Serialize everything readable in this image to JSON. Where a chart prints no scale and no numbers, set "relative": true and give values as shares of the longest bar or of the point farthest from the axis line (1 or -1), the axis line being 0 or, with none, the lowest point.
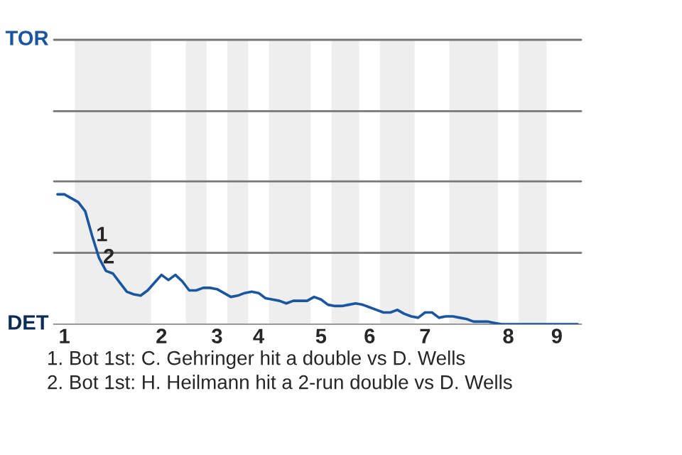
{
  "chart_data": {
    "type": "line",
    "relative": true,
    "categories": [
      null,
      "1",
      null,
      null,
      null,
      null,
      null,
      null,
      null,
      null,
      null,
      null,
      null,
      null,
      null,
      "2",
      null,
      null,
      null,
      null,
      null,
      null,
      null,
      "3",
      null,
      null,
      null,
      null,
      null,
      "4",
      null,
      null,
      null,
      null,
      null,
      null,
      null,
      null,
      "5",
      null,
      null,
      null,
      null,
      null,
      null,
      "6",
      null,
      null,
      null,
      null,
      null,
      null,
      null,
      "7",
      null,
      null,
      null,
      null,
      null,
      null,
      null,
      null,
      null,
      null,
      null,
      "8",
      null,
      null,
      null,
      null,
      null,
      null,
      "9",
      null,
      null,
      null
    ],
    "series": [
      {
        "color": "#1a56a0",
        "values": [
          1,
          1,
          0.97,
          0.94,
          0.87,
          0.68,
          0.51,
          0.41,
          0.39,
          0.32,
          0.25,
          0.23,
          0.22,
          0.26,
          0.32,
          0.38,
          0.34,
          0.38,
          0.33,
          0.26,
          0.26,
          0.28,
          0.28,
          0.27,
          0.24,
          0.21,
          0.22,
          0.24,
          0.25,
          0.24,
          0.2,
          0.19,
          0.18,
          0.16,
          0.18,
          0.18,
          0.18,
          0.21,
          0.19,
          0.15,
          0.14,
          0.14,
          0.15,
          0.16,
          0.15,
          0.13,
          0.11,
          0.09,
          0.09,
          0.11,
          0.08,
          0.06,
          0.05,
          0.09,
          0.09,
          0.05,
          0.06,
          0.06,
          0.05,
          0.04,
          0.02,
          0.02,
          0.02,
          0.01,
          0,
          0,
          0,
          0,
          0,
          0,
          0,
          0,
          0,
          0,
          0,
          0
        ]
      }
    ],
    "ref_lines": [
      {
        "axis": "y",
        "value": 0.55,
        "color": "#777777"
      },
      {
        "axis": "y",
        "value": 1.1,
        "color": "#777777"
      },
      {
        "axis": "y",
        "value": 1.64,
        "color": "#777777"
      },
      {
        "axis": "y",
        "value": 2.19,
        "color": "#777777"
      }
    ],
    "annotations": [
      "TOR",
      "DET",
      "1",
      "2",
      "1. Bot 1st: C. Gehringer hit a double vs D. Wells",
      "2. Bot 1st: H. Heilmann hit a 2-run double vs D. Wells"
    ]
  }
}
